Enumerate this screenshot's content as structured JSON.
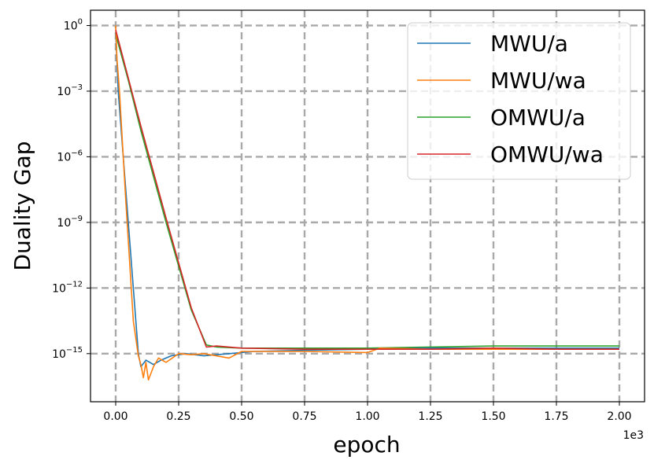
{
  "chart_data": {
    "type": "line",
    "xlabel": "epoch",
    "ylabel": "Duality Gap",
    "x_offset_label": "1e3",
    "xlim": [
      -0.1,
      2.1
    ],
    "ylim_log10": [
      -17.2,
      0.7
    ],
    "yscale": "log",
    "grid": true,
    "legend_position": "top-right",
    "x_ticks": [
      0.0,
      0.25,
      0.5,
      0.75,
      1.0,
      1.25,
      1.5,
      1.75,
      2.0
    ],
    "x_tick_labels": [
      "0.00",
      "0.25",
      "0.50",
      "0.75",
      "1.00",
      "1.25",
      "1.50",
      "1.75",
      "2.00"
    ],
    "y_ticks_exp": [
      0,
      -3,
      -6,
      -9,
      -12,
      -15
    ],
    "y_tick_labels": [
      {
        "base": "10",
        "exp": "0"
      },
      {
        "base": "10",
        "exp": "−3"
      },
      {
        "base": "10",
        "exp": "−6"
      },
      {
        "base": "10",
        "exp": "−9"
      },
      {
        "base": "10",
        "exp": "−12"
      },
      {
        "base": "10",
        "exp": "−15"
      }
    ],
    "series": [
      {
        "name": "MWU/a",
        "color": "#1f77b4",
        "x": [
          0.0,
          0.01,
          0.03,
          0.06,
          0.09,
          0.1,
          0.12,
          0.15,
          0.18,
          0.22,
          0.28,
          0.35,
          0.45,
          0.55,
          0.75,
          1.0,
          1.25,
          1.5,
          1.75,
          2.0
        ],
        "y_log10": [
          -0.3,
          -3.0,
          -6.0,
          -10.5,
          -15.0,
          -15.6,
          -15.3,
          -15.5,
          -15.3,
          -15.1,
          -15.0,
          -15.1,
          -15.0,
          -14.9,
          -14.85,
          -14.8,
          -14.75,
          -14.75,
          -14.75,
          -14.75
        ]
      },
      {
        "name": "MWU/wa",
        "color": "#ff7f0e",
        "x": [
          0.0,
          0.005,
          0.015,
          0.04,
          0.07,
          0.09,
          0.1,
          0.11,
          0.12,
          0.13,
          0.15,
          0.17,
          0.2,
          0.25,
          0.3,
          0.35,
          0.45,
          0.5,
          0.75,
          1.0,
          1.05,
          1.25,
          1.5,
          1.75,
          2.0
        ],
        "y_log10": [
          0.0,
          -1.5,
          -3.0,
          -8.0,
          -13.5,
          -15.1,
          -15.5,
          -16.1,
          -15.4,
          -16.2,
          -15.6,
          -15.2,
          -15.4,
          -15.0,
          -15.05,
          -15.0,
          -15.2,
          -14.9,
          -14.9,
          -14.95,
          -14.75,
          -14.8,
          -14.8,
          -14.8,
          -14.8
        ]
      },
      {
        "name": "OMWU/a",
        "color": "#2ca02c",
        "x": [
          0.0,
          0.05,
          0.1,
          0.2,
          0.3,
          0.36,
          0.4,
          0.5,
          0.75,
          1.0,
          1.25,
          1.5,
          1.75,
          2.0
        ],
        "y_log10": [
          -0.4,
          -2.5,
          -4.8,
          -9.0,
          -13.0,
          -14.6,
          -14.7,
          -14.75,
          -14.75,
          -14.75,
          -14.7,
          -14.65,
          -14.65,
          -14.65
        ]
      },
      {
        "name": "OMWU/wa",
        "color": "#d62728",
        "x": [
          0.0,
          0.05,
          0.1,
          0.2,
          0.3,
          0.36,
          0.4,
          0.5,
          0.75,
          1.0,
          1.25,
          1.5,
          1.75,
          2.0
        ],
        "y_log10": [
          -0.2,
          -2.4,
          -4.6,
          -8.8,
          -12.9,
          -14.7,
          -14.65,
          -14.75,
          -14.8,
          -14.8,
          -14.8,
          -14.75,
          -14.8,
          -14.8
        ]
      }
    ]
  }
}
